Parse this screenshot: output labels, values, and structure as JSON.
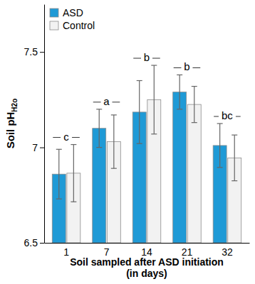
{
  "chart_data": {
    "type": "bar",
    "y_label": "Soil pH",
    "y_label_subscript": "H2o",
    "x_label": "Soil sampled after ASD initiation\n(in days)",
    "categories": [
      "1",
      "7",
      "14",
      "21",
      "32"
    ],
    "series": [
      {
        "name": "ASD",
        "color": "#1f9ad6",
        "values": [
          6.86,
          7.1,
          7.185,
          7.29,
          7.01
        ],
        "errors": [
          0.13,
          0.1,
          0.165,
          0.09,
          0.115
        ]
      },
      {
        "name": "Control",
        "color": "#f2f2f2",
        "values": [
          6.865,
          7.03,
          7.25,
          7.225,
          6.945
        ],
        "errors": [
          0.15,
          0.14,
          0.18,
          0.095,
          0.12
        ]
      }
    ],
    "annotations": [
      "c",
      "a",
      "b",
      "b",
      "bc"
    ],
    "ylim": [
      6.5,
      7.75
    ],
    "yticks": [
      6.5,
      7,
      7.5
    ],
    "legend": "upper left",
    "grid": false
  }
}
